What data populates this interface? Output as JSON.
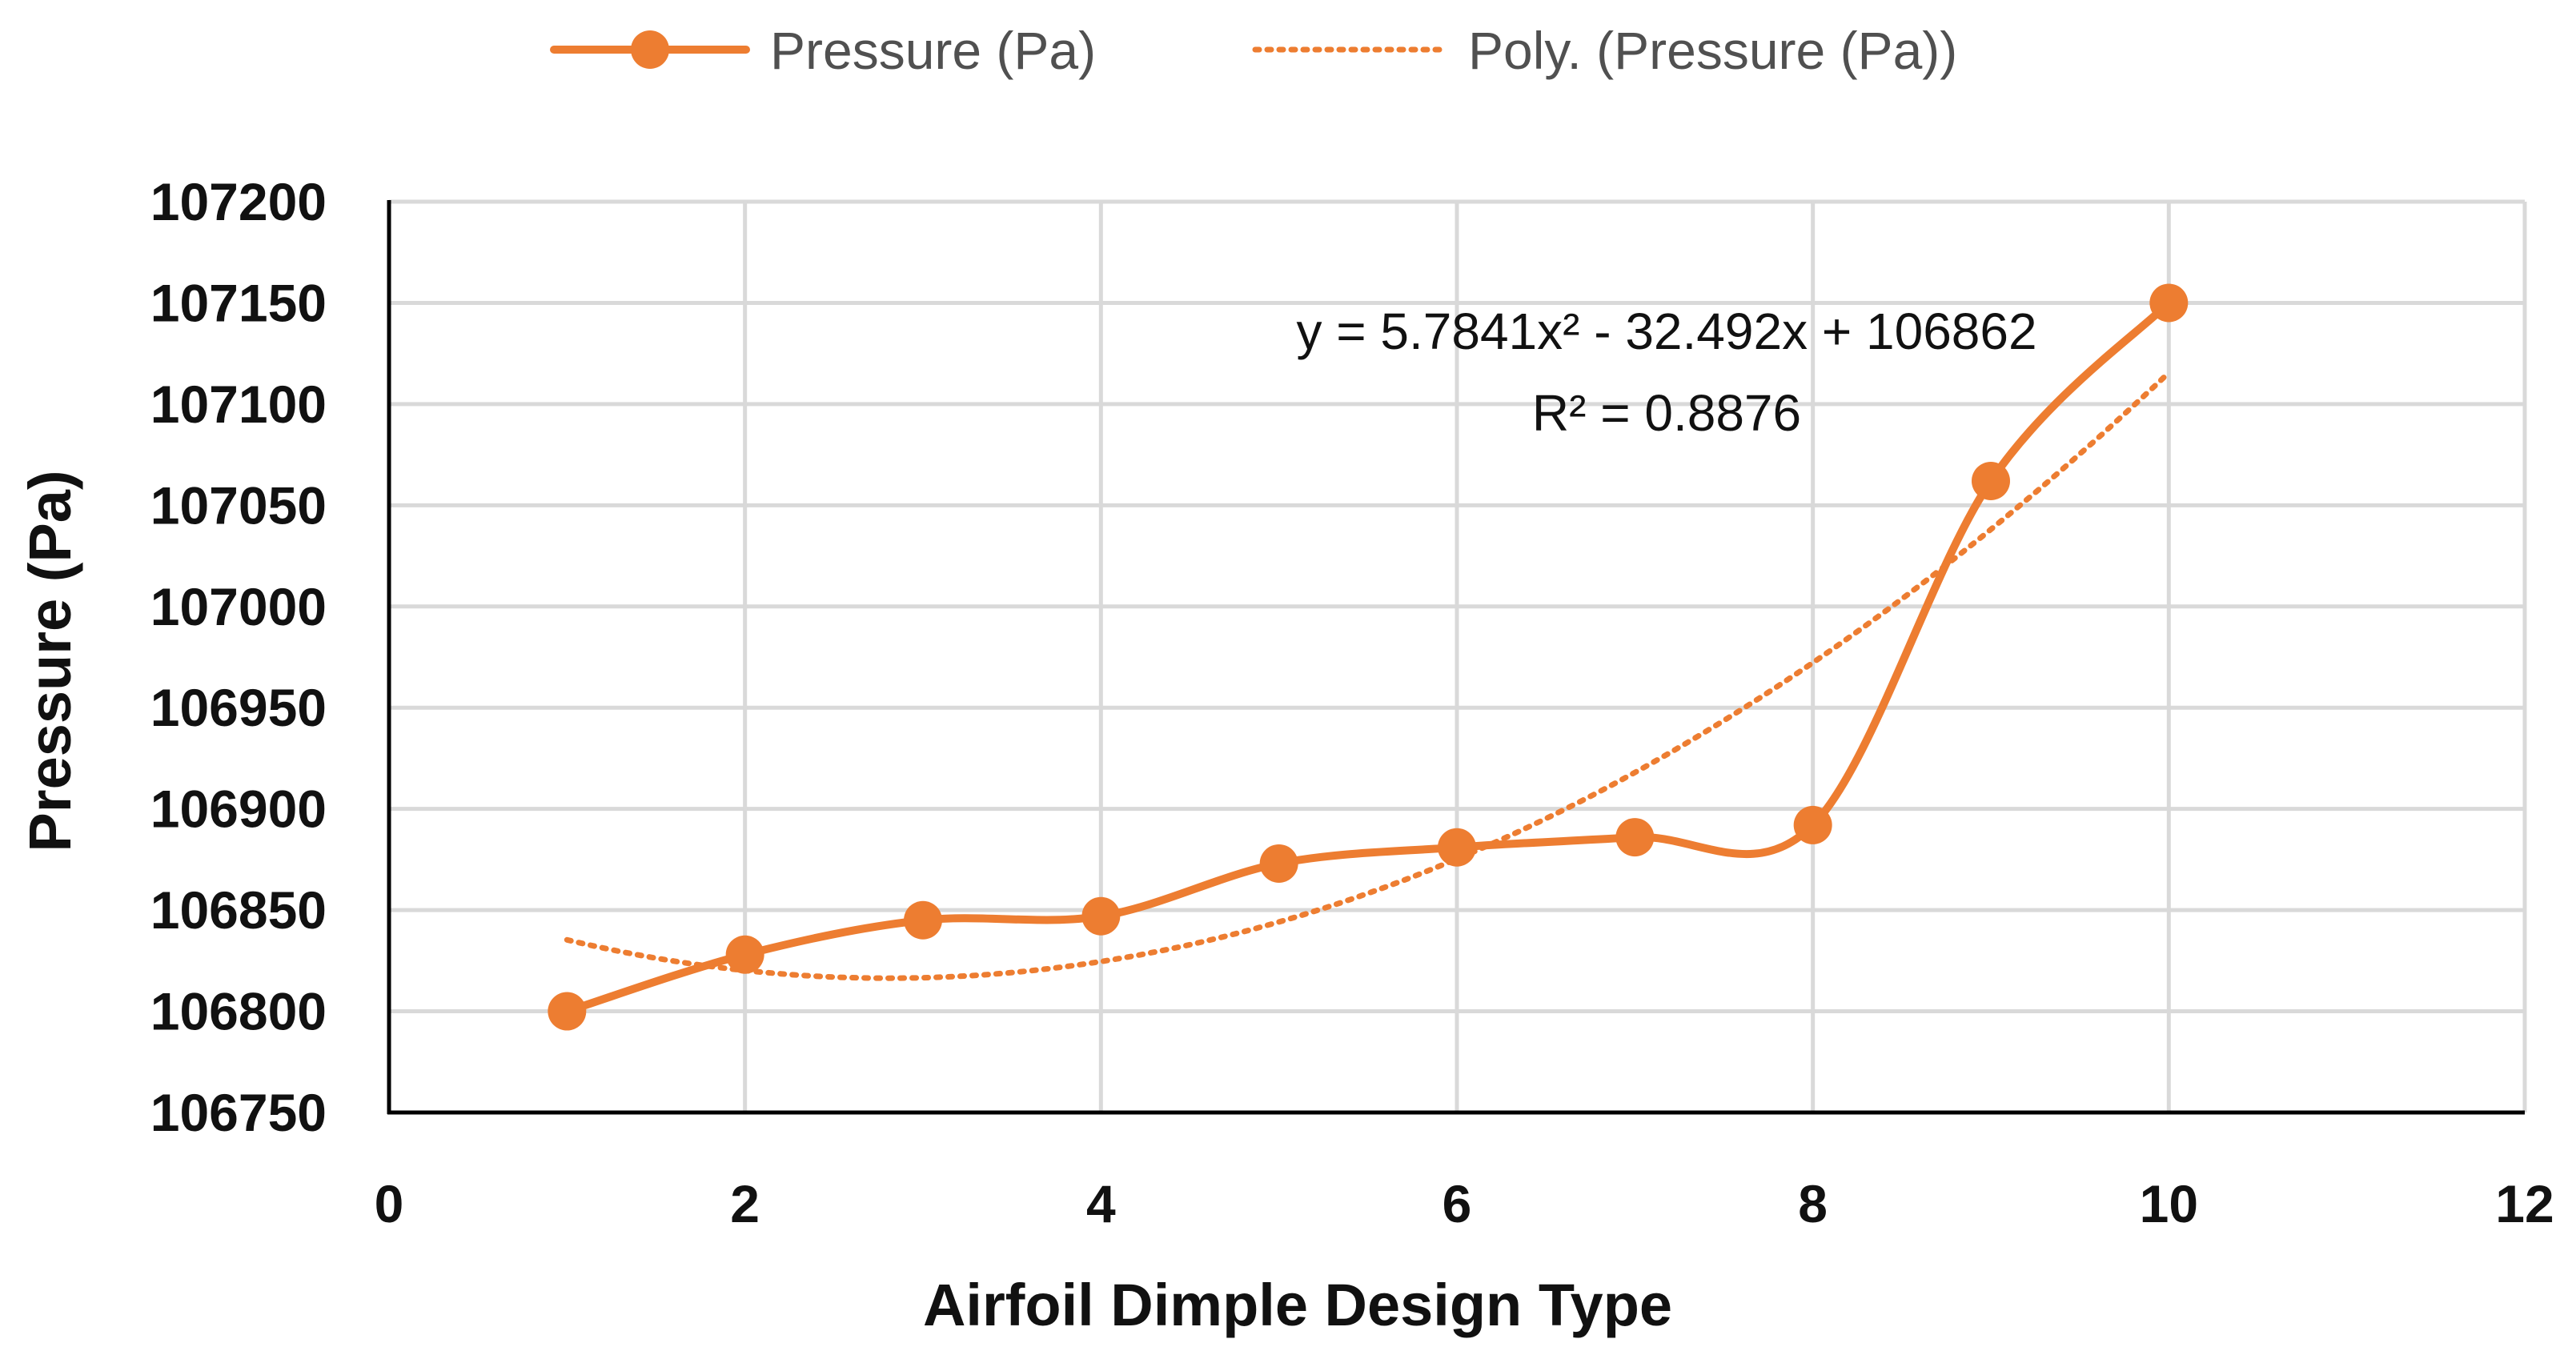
{
  "chart_data": {
    "type": "scatter",
    "title": "",
    "xlabel": "Airfoil Dimple Design Type",
    "ylabel": "Pressure (Pa)",
    "xlim": [
      0,
      12
    ],
    "ylim": [
      106750,
      107200
    ],
    "x_ticks": [
      "0",
      "2",
      "4",
      "6",
      "8",
      "10",
      "12"
    ],
    "y_ticks": [
      "106750",
      "106800",
      "106850",
      "106900",
      "106950",
      "107000",
      "107050",
      "107100",
      "107150",
      "107200"
    ],
    "grid": true,
    "legend_position": "top-center",
    "series": [
      {
        "name": "Pressure (Pa)",
        "style": "smooth line with circle markers",
        "color": "#ed7d31",
        "x": [
          1,
          2,
          3,
          4,
          5,
          6,
          7,
          8,
          9,
          10
        ],
        "values": [
          106800,
          106828,
          106845,
          106847,
          106873,
          106881,
          106886,
          106892,
          107062,
          107150
        ]
      }
    ],
    "trendline": {
      "name": "Poly. (Pressure (Pa))",
      "type": "polynomial",
      "order": 2,
      "color": "#ed7d31",
      "coefficients": [
        5.7841,
        -32.492,
        106862
      ],
      "x_range": [
        1,
        10
      ]
    },
    "annotations": {
      "equation": "y = 5.7841x² - 32.492x + 106862",
      "r_squared": "R² = 0.8876"
    }
  }
}
